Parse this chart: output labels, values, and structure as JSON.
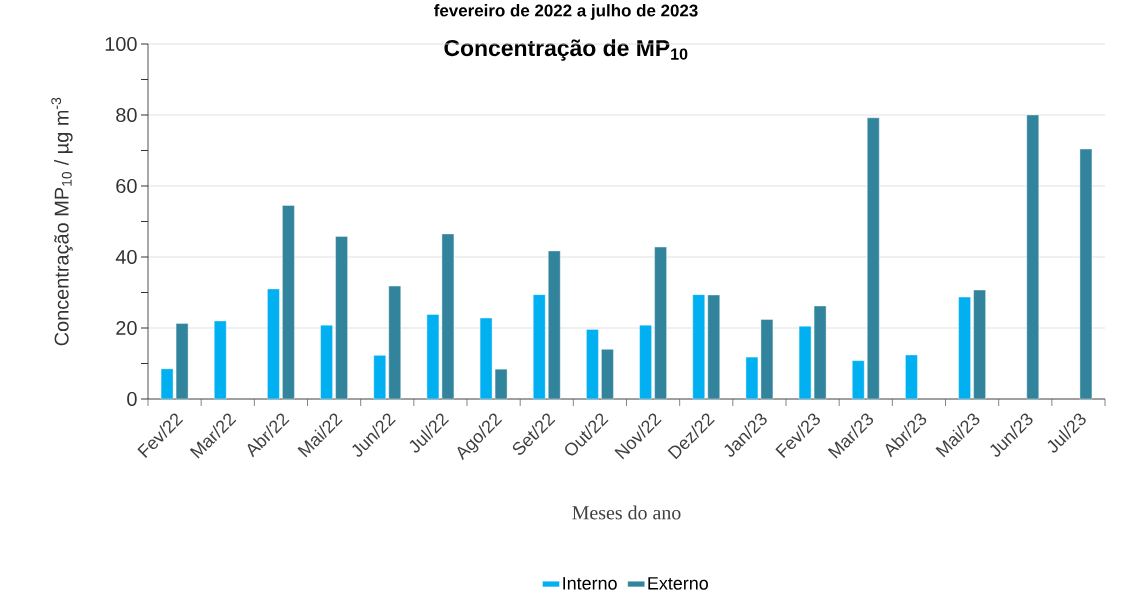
{
  "chart_data": {
    "type": "bar",
    "title": "Concentração de MP$_{10}$",
    "annotations": [
      "fevereiro de 2022 a julho de 2023"
    ],
    "xlabel": "Meses do ano",
    "ylabel": "Concentração MP$_{10}$ / µg m$^{-3}$",
    "categories": [
      "Fev/22",
      "Mar/22",
      "Abr/22",
      "Mai/22",
      "Jun/22",
      "Jul/22",
      "Ago/22",
      "Set/22",
      "Out/22",
      "Nov/22",
      "Dez/22",
      "Jan/23",
      "Fev/23",
      "Mar/23",
      "Abr/23",
      "Mai/23",
      "Jun/23",
      "Jul/23"
    ],
    "series": [
      {
        "name": "Interno",
        "color": "#00b0f0",
        "values": [
          8.5,
          22,
          31,
          20.8,
          12.3,
          23.8,
          22.8,
          29.4,
          19.6,
          20.8,
          29.4,
          11.8,
          20.5,
          10.8,
          12.4,
          28.7,
          null,
          null
        ]
      },
      {
        "name": "Externo",
        "color": "#31849b",
        "values": [
          21.3,
          null,
          54.5,
          45.8,
          31.8,
          46.5,
          8.4,
          41.7,
          14,
          42.8,
          29.3,
          22.4,
          26.2,
          79.2,
          null,
          30.7,
          80,
          70.4
        ]
      }
    ],
    "ylim": [
      0,
      100
    ],
    "yticks": [
      0,
      20,
      40,
      60,
      80,
      100
    ],
    "grid": "y",
    "legend": "bottom"
  }
}
